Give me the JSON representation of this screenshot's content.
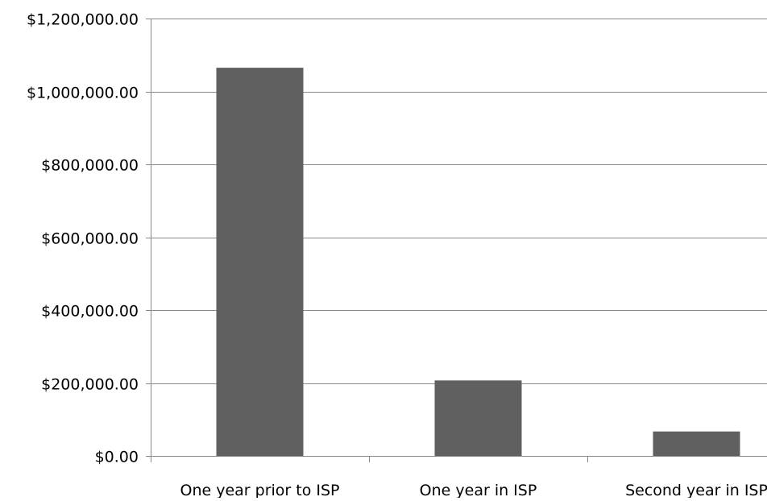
{
  "chart_data": {
    "type": "bar",
    "title": "",
    "xlabel": "",
    "ylabel": "",
    "categories": [
      "One year prior to ISP",
      "One year in ISP",
      "Second year in ISP"
    ],
    "values": [
      1065000,
      207000,
      67000
    ],
    "ylim": [
      0,
      1200000
    ],
    "yticks": [
      0,
      200000,
      400000,
      600000,
      800000,
      1000000,
      1200000
    ],
    "ytick_labels": [
      "$0.00",
      "$200,000.00",
      "$400,000.00",
      "$600,000.00",
      "$800,000.00",
      "$1,000,000.00",
      "$1,200,000.00"
    ],
    "grid": true,
    "legend": "none",
    "colors": {
      "bar": "#606060",
      "gridline": "#888888",
      "axis": "#888888",
      "text": "#000000"
    }
  }
}
